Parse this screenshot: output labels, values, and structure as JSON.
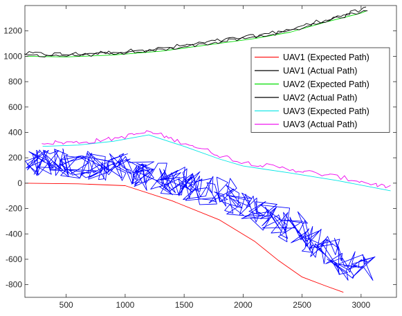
{
  "chart_data": {
    "type": "line",
    "xlim": [
      150,
      3300
    ],
    "ylim": [
      -900,
      1400
    ],
    "xticks": [
      500,
      1000,
      1500,
      2000,
      2500,
      3000
    ],
    "yticks": [
      -800,
      -600,
      -400,
      -200,
      0,
      200,
      400,
      600,
      800,
      1000,
      1200
    ],
    "xtick_labels": [
      "500",
      "1000",
      "1500",
      "2000",
      "2500",
      "3000"
    ],
    "ytick_labels": [
      "-800",
      "-600",
      "-400",
      "-200",
      "0",
      "200",
      "400",
      "600",
      "800",
      "1000",
      "1200"
    ],
    "grid": false,
    "legend_position": "top-right inside",
    "series": [
      {
        "name": "UAV1 (Expected Path)",
        "color": "#ff0000",
        "style": "smooth",
        "x": [
          150,
          600,
          1000,
          1400,
          1800,
          2100,
          2300,
          2500,
          2700,
          2850
        ],
        "y": [
          0,
          -5,
          -20,
          -140,
          -290,
          -460,
          -610,
          -740,
          -810,
          -860
        ]
      },
      {
        "name": "UAV1 (Actual Path)",
        "color": "#000000",
        "style": "noisy",
        "noise_amp": 18,
        "samples": 90,
        "x": [
          150,
          500,
          900,
          1300,
          1700,
          2100,
          2400,
          2700,
          3000,
          3050
        ],
        "y": [
          1020,
          1015,
          1030,
          1060,
          1110,
          1160,
          1210,
          1290,
          1360,
          1380
        ]
      },
      {
        "name": "UAV2 (Expected Path)",
        "color": "#00dd00",
        "style": "smooth",
        "x": [
          150,
          500,
          900,
          1300,
          1700,
          2100,
          2400,
          2700,
          3000,
          3050
        ],
        "y": [
          1000,
          995,
          1010,
          1040,
          1090,
          1140,
          1190,
          1270,
          1340,
          1360
        ]
      },
      {
        "name": "UAV2 (Actual Path)",
        "color": "#000000",
        "style": "noisy",
        "noise_amp": 14,
        "samples": 90,
        "x": [
          150,
          500,
          900,
          1300,
          1700,
          2100,
          2400,
          2700,
          3000,
          3050
        ],
        "y": [
          1010,
          1005,
          1020,
          1050,
          1100,
          1150,
          1200,
          1280,
          1350,
          1370
        ]
      },
      {
        "name": "UAV3 (Expected  Path)",
        "color": "#00e5e5",
        "style": "smooth",
        "x": [
          300,
          600,
          900,
          1200,
          1500,
          1800,
          2000,
          2400,
          2800,
          3250
        ],
        "y": [
          290,
          300,
          330,
          380,
          290,
          190,
          135,
          80,
          20,
          -60
        ]
      },
      {
        "name": "UAV3 (Actual Path)",
        "color": "#ee00ee",
        "style": "noisy",
        "noise_amp": 18,
        "samples": 110,
        "x": [
          300,
          600,
          900,
          1200,
          1500,
          1800,
          2000,
          2400,
          2800,
          3250
        ],
        "y": [
          320,
          320,
          350,
          405,
          320,
          220,
          165,
          110,
          50,
          -35
        ]
      },
      {
        "name": "",
        "color": "#0000ff",
        "style": "scribble",
        "samples": 420,
        "spread_x": 110,
        "spread_y": 120,
        "x": [
          150,
          400,
          700,
          1000,
          1300,
          1600,
          1800,
          2000,
          2300,
          2600,
          2900,
          3050
        ],
        "y": [
          150,
          170,
          150,
          110,
          40,
          -20,
          -80,
          -170,
          -290,
          -460,
          -650,
          -660
        ]
      }
    ]
  }
}
